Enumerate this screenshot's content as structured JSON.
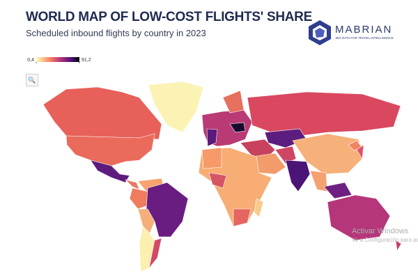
{
  "header": {
    "title": "WORLD MAP OF LOW-COST FLIGHTS' SHARE",
    "subtitle": "Scheduled inbound flights by country in 2023"
  },
  "logo": {
    "name": "MABRIAN",
    "tagline": "BIG DATA FOR TRAVEL INTELLIGENCE"
  },
  "legend": {
    "ticks": [
      {
        "value": 0.4,
        "label": "0,4"
      },
      {
        "value": 91.2,
        "label": "91,2"
      }
    ]
  },
  "watermark": {
    "line1": "Activar Windows",
    "line2": "Ve a Configuración para activ"
  }
}
